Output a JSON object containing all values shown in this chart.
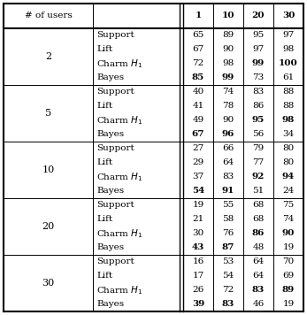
{
  "header_col1": "# of users",
  "header_sessions": [
    "1",
    "10",
    "20",
    "30"
  ],
  "groups": [
    {
      "users": "2",
      "rows": [
        {
          "method": "Support",
          "values": [
            65,
            89,
            95,
            97
          ],
          "bold_mask": [
            false,
            false,
            false,
            false
          ]
        },
        {
          "method": "Lift",
          "values": [
            67,
            90,
            97,
            98
          ],
          "bold_mask": [
            false,
            false,
            false,
            false
          ]
        },
        {
          "method": "Charm $H_1$",
          "values": [
            72,
            98,
            99,
            100
          ],
          "bold_mask": [
            false,
            false,
            true,
            true
          ]
        },
        {
          "method": "Bayes",
          "values": [
            85,
            99,
            73,
            61
          ],
          "bold_mask": [
            true,
            true,
            false,
            false
          ]
        }
      ]
    },
    {
      "users": "5",
      "rows": [
        {
          "method": "Support",
          "values": [
            40,
            74,
            83,
            88
          ],
          "bold_mask": [
            false,
            false,
            false,
            false
          ]
        },
        {
          "method": "Lift",
          "values": [
            41,
            78,
            86,
            88
          ],
          "bold_mask": [
            false,
            false,
            false,
            false
          ]
        },
        {
          "method": "Charm $H_1$",
          "values": [
            49,
            90,
            95,
            98
          ],
          "bold_mask": [
            false,
            false,
            true,
            true
          ]
        },
        {
          "method": "Bayes",
          "values": [
            67,
            96,
            56,
            34
          ],
          "bold_mask": [
            true,
            true,
            false,
            false
          ]
        }
      ]
    },
    {
      "users": "10",
      "rows": [
        {
          "method": "Support",
          "values": [
            27,
            66,
            79,
            80
          ],
          "bold_mask": [
            false,
            false,
            false,
            false
          ]
        },
        {
          "method": "Lift",
          "values": [
            29,
            64,
            77,
            80
          ],
          "bold_mask": [
            false,
            false,
            false,
            false
          ]
        },
        {
          "method": "Charm $H_1$",
          "values": [
            37,
            83,
            92,
            94
          ],
          "bold_mask": [
            false,
            false,
            true,
            true
          ]
        },
        {
          "method": "Bayes",
          "values": [
            54,
            91,
            51,
            24
          ],
          "bold_mask": [
            true,
            true,
            false,
            false
          ]
        }
      ]
    },
    {
      "users": "20",
      "rows": [
        {
          "method": "Support",
          "values": [
            19,
            55,
            68,
            75
          ],
          "bold_mask": [
            false,
            false,
            false,
            false
          ]
        },
        {
          "method": "Lift",
          "values": [
            21,
            58,
            68,
            74
          ],
          "bold_mask": [
            false,
            false,
            false,
            false
          ]
        },
        {
          "method": "Charm $H_1$",
          "values": [
            30,
            76,
            86,
            90
          ],
          "bold_mask": [
            false,
            false,
            true,
            true
          ]
        },
        {
          "method": "Bayes",
          "values": [
            43,
            87,
            48,
            19
          ],
          "bold_mask": [
            true,
            true,
            false,
            false
          ]
        }
      ]
    },
    {
      "users": "30",
      "rows": [
        {
          "method": "Support",
          "values": [
            16,
            53,
            64,
            70
          ],
          "bold_mask": [
            false,
            false,
            false,
            false
          ]
        },
        {
          "method": "Lift",
          "values": [
            17,
            54,
            64,
            69
          ],
          "bold_mask": [
            false,
            false,
            false,
            false
          ]
        },
        {
          "method": "Charm $H_1$",
          "values": [
            26,
            72,
            83,
            89
          ],
          "bold_mask": [
            false,
            false,
            true,
            true
          ]
        },
        {
          "method": "Bayes",
          "values": [
            39,
            83,
            46,
            19
          ],
          "bold_mask": [
            true,
            true,
            false,
            false
          ]
        }
      ]
    }
  ],
  "background_color": "#ffffff",
  "line_color": "#000000",
  "font_size": 7.5
}
